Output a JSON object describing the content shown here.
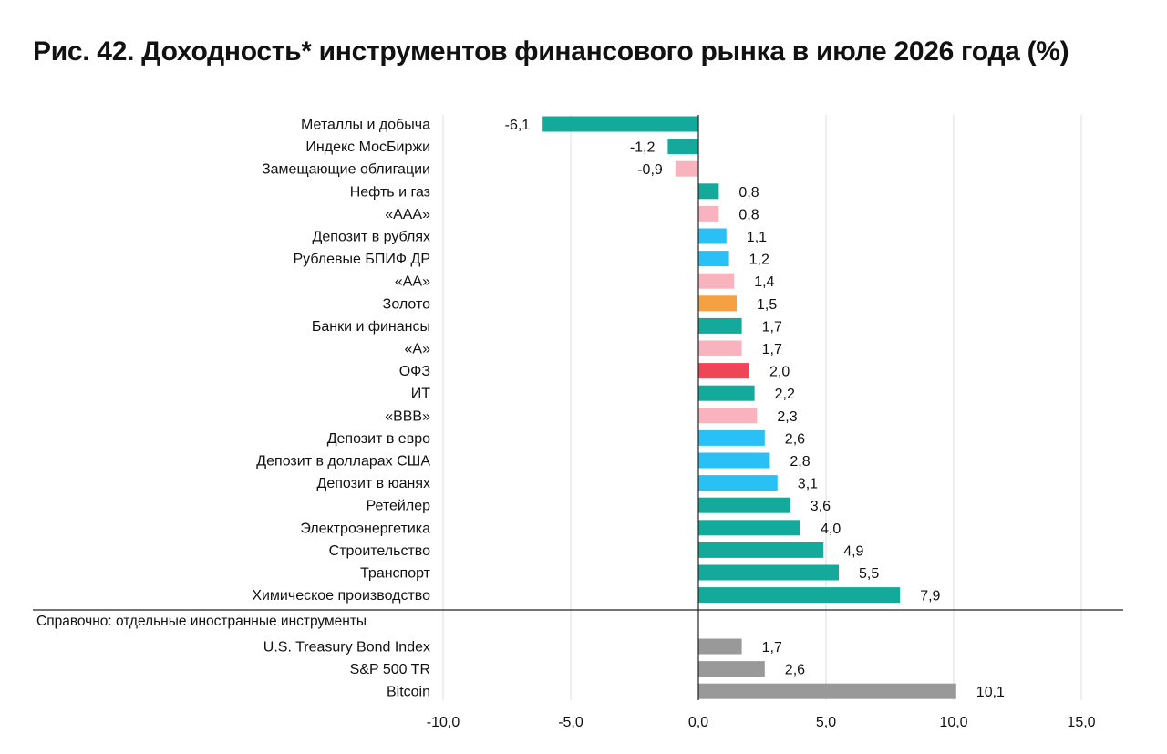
{
  "title": "Рис. 42. Доходность* инструментов финансового рынка в июле 2026 года (%)",
  "colors": {
    "teal": "#13a99b",
    "pink": "#f8b3be",
    "blue": "#29c1f5",
    "orange": "#f6a141",
    "red": "#ef4657",
    "gray": "#999999",
    "grid": "#dcdcdc",
    "axis": "#222222"
  },
  "chart_data": {
    "type": "bar",
    "orientation": "horizontal",
    "title": "Рис. 42. Доходность* инструментов финансового рынка в июле 2026 года (%)",
    "xlim": [
      -10,
      15
    ],
    "xticks": [
      -10,
      -5,
      0,
      5,
      10,
      15
    ],
    "xtick_labels": [
      "-10,0",
      "-5,0",
      "0,0",
      "5,0",
      "10,0",
      "15,0"
    ],
    "grid": "vertical",
    "categories": [
      "Металлы и добыча",
      "Индекс МосБиржи",
      "Замещающие облигации",
      "Нефть и газ",
      "«ААА»",
      "Депозит в рублях",
      "Рублевые БПИФ ДР",
      "«АА»",
      "Золото",
      "Банки и финансы",
      "«А»",
      "ОФЗ",
      "ИТ",
      "«ВВВ»",
      "Депозит в евро",
      "Депозит в долларах США",
      "Депозит в юанях",
      "Ретейлер",
      "Электроэнергетика",
      "Строительство",
      "Транспорт",
      "Химическое производство"
    ],
    "values": [
      -6.1,
      -1.2,
      -0.9,
      0.8,
      0.8,
      1.1,
      1.2,
      1.4,
      1.5,
      1.7,
      1.7,
      2.0,
      2.2,
      2.3,
      2.6,
      2.8,
      3.1,
      3.6,
      4.0,
      4.9,
      5.5,
      7.9
    ],
    "value_labels": [
      "-6,1",
      "-1,2",
      "-0,9",
      "0,8",
      "0,8",
      "1,1",
      "1,2",
      "1,4",
      "1,5",
      "1,7",
      "1,7",
      "2,0",
      "2,2",
      "2,3",
      "2,6",
      "2,8",
      "3,1",
      "3,6",
      "4,0",
      "4,9",
      "5,5",
      "7,9"
    ],
    "bar_colors": [
      "teal",
      "teal",
      "pink",
      "teal",
      "pink",
      "blue",
      "blue",
      "pink",
      "orange",
      "teal",
      "pink",
      "red",
      "teal",
      "pink",
      "blue",
      "blue",
      "blue",
      "teal",
      "teal",
      "teal",
      "teal",
      "teal"
    ],
    "reference_section": {
      "label": "Справочно:  отдельные иностранные инструменты",
      "categories": [
        "U.S. Treasury Bond Index",
        "S&P 500 TR",
        "Bitcoin"
      ],
      "values": [
        1.7,
        2.6,
        10.1
      ],
      "value_labels": [
        "1,7",
        "2,6",
        "10,1"
      ],
      "bar_colors": [
        "gray",
        "gray",
        "gray"
      ]
    }
  }
}
